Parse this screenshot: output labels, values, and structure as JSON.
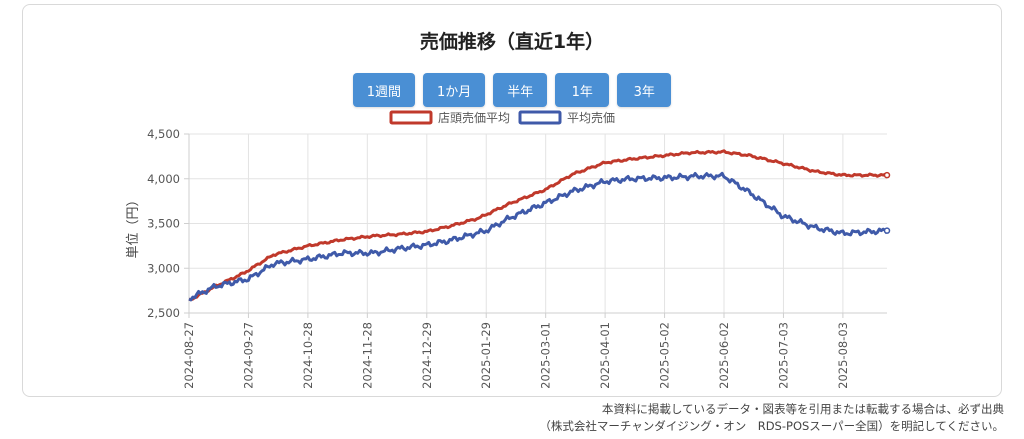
{
  "chart_data": {
    "type": "line",
    "title": "売価推移（直近1年）",
    "ylabel": "単位（円）",
    "xlabel": "",
    "ylim": [
      2500,
      4500
    ],
    "yticks": [
      "2,500",
      "3,000",
      "3,500",
      "4,000",
      "4,500"
    ],
    "x_start": "2024-08-27",
    "x_end": "2025-08-26",
    "x_tick_labels": [
      "2024-08-27",
      "2024-09-27",
      "2024-10-28",
      "2024-11-28",
      "2024-12-29",
      "2025-01-29",
      "2025-03-01",
      "2025-04-01",
      "2025-05-02",
      "2025-06-02",
      "2025-07-03",
      "2025-08-03"
    ],
    "grid": true,
    "legend_position": "top",
    "series": [
      {
        "name": "店頭売価平均",
        "color": "#c0392b",
        "points": [
          [
            "2024-08-27",
            2640
          ],
          [
            "2024-09-10",
            2800
          ],
          [
            "2024-09-25",
            2950
          ],
          [
            "2024-10-10",
            3150
          ],
          [
            "2024-10-28",
            3250
          ],
          [
            "2024-11-15",
            3320
          ],
          [
            "2024-12-01",
            3360
          ],
          [
            "2024-12-15",
            3380
          ],
          [
            "2024-12-29",
            3410
          ],
          [
            "2025-01-10",
            3470
          ],
          [
            "2025-01-25",
            3560
          ],
          [
            "2025-02-10",
            3720
          ],
          [
            "2025-03-01",
            3880
          ],
          [
            "2025-03-15",
            4050
          ],
          [
            "2025-04-01",
            4180
          ],
          [
            "2025-04-15",
            4220
          ],
          [
            "2025-05-02",
            4260
          ],
          [
            "2025-05-15",
            4290
          ],
          [
            "2025-06-02",
            4300
          ],
          [
            "2025-06-15",
            4260
          ],
          [
            "2025-07-03",
            4170
          ],
          [
            "2025-07-20",
            4080
          ],
          [
            "2025-08-03",
            4040
          ],
          [
            "2025-08-26",
            4040
          ]
        ]
      },
      {
        "name": "平均売価",
        "color": "#3f5aa9",
        "points": [
          [
            "2024-08-27",
            2660
          ],
          [
            "2024-09-10",
            2800
          ],
          [
            "2024-09-27",
            2880
          ],
          [
            "2024-10-10",
            3050
          ],
          [
            "2024-10-28",
            3100
          ],
          [
            "2024-11-15",
            3170
          ],
          [
            "2024-12-01",
            3170
          ],
          [
            "2024-12-15",
            3220
          ],
          [
            "2024-12-29",
            3260
          ],
          [
            "2025-01-10",
            3310
          ],
          [
            "2025-01-29",
            3420
          ],
          [
            "2025-02-10",
            3560
          ],
          [
            "2025-03-01",
            3730
          ],
          [
            "2025-03-15",
            3860
          ],
          [
            "2025-04-01",
            3970
          ],
          [
            "2025-04-15",
            4000
          ],
          [
            "2025-05-02",
            4010
          ],
          [
            "2025-05-20",
            4030
          ],
          [
            "2025-06-02",
            4030
          ],
          [
            "2025-06-15",
            3850
          ],
          [
            "2025-06-25",
            3700
          ],
          [
            "2025-07-03",
            3580
          ],
          [
            "2025-07-20",
            3450
          ],
          [
            "2025-08-03",
            3390
          ],
          [
            "2025-08-26",
            3420
          ]
        ]
      }
    ]
  },
  "controls": {
    "range_buttons": [
      "1週間",
      "1か月",
      "半年",
      "1年",
      "3年"
    ]
  },
  "footer": {
    "line1": "本資料に掲載しているデータ・図表等を引用または転載する場合は、必ず出典",
    "line2": "（株式会社マーチャンダイジング・オン　RDS-POSスーパー全国）を明記してください。"
  }
}
